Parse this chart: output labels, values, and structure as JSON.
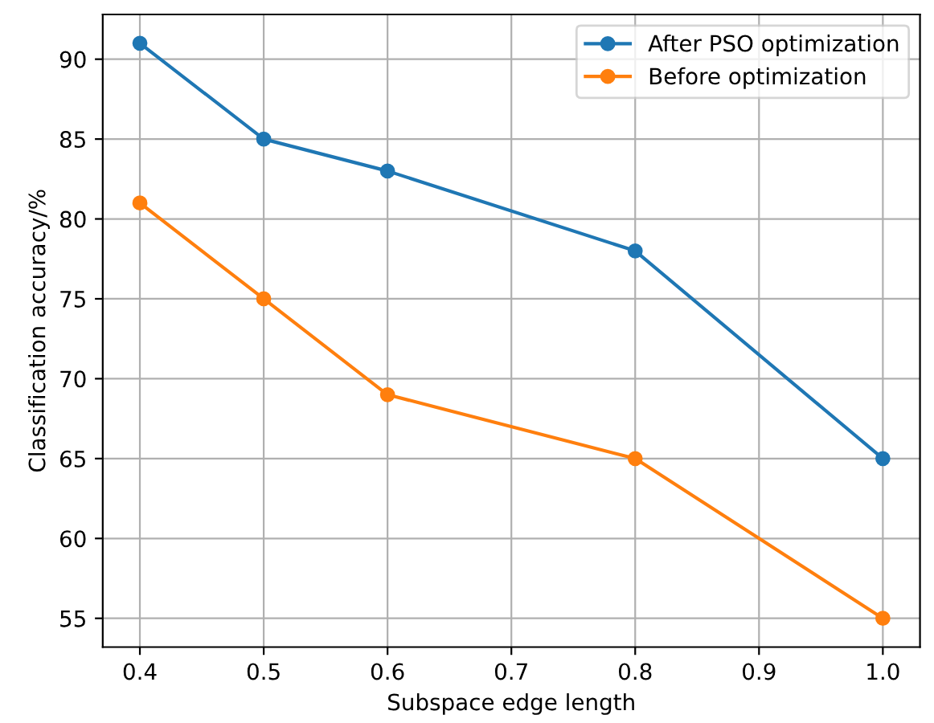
{
  "chart_data": {
    "type": "line",
    "xlabel": "Subspace edge length",
    "ylabel": "Classification accuracy/%",
    "x": [
      0.4,
      0.5,
      0.6,
      0.8,
      1.0
    ],
    "series": [
      {
        "name": "After PSO optimization",
        "color": "#1f77b4",
        "values": [
          91,
          85,
          83,
          78,
          65
        ]
      },
      {
        "name": "Before optimization",
        "color": "#ff7f0e",
        "values": [
          81,
          75,
          69,
          65,
          55
        ]
      }
    ],
    "xlim": [
      0.37,
      1.03
    ],
    "xticks": [
      0.4,
      0.5,
      0.6,
      0.7,
      0.8,
      0.9,
      {
        "value": 1.0,
        "label": "1.0"
      }
    ],
    "ylim": [
      53.2,
      92.8
    ],
    "yticks": [
      55,
      60,
      65,
      70,
      75,
      80,
      85,
      90
    ],
    "grid": true,
    "legend": "top right",
    "marker": "circle",
    "line_style": "solid"
  }
}
